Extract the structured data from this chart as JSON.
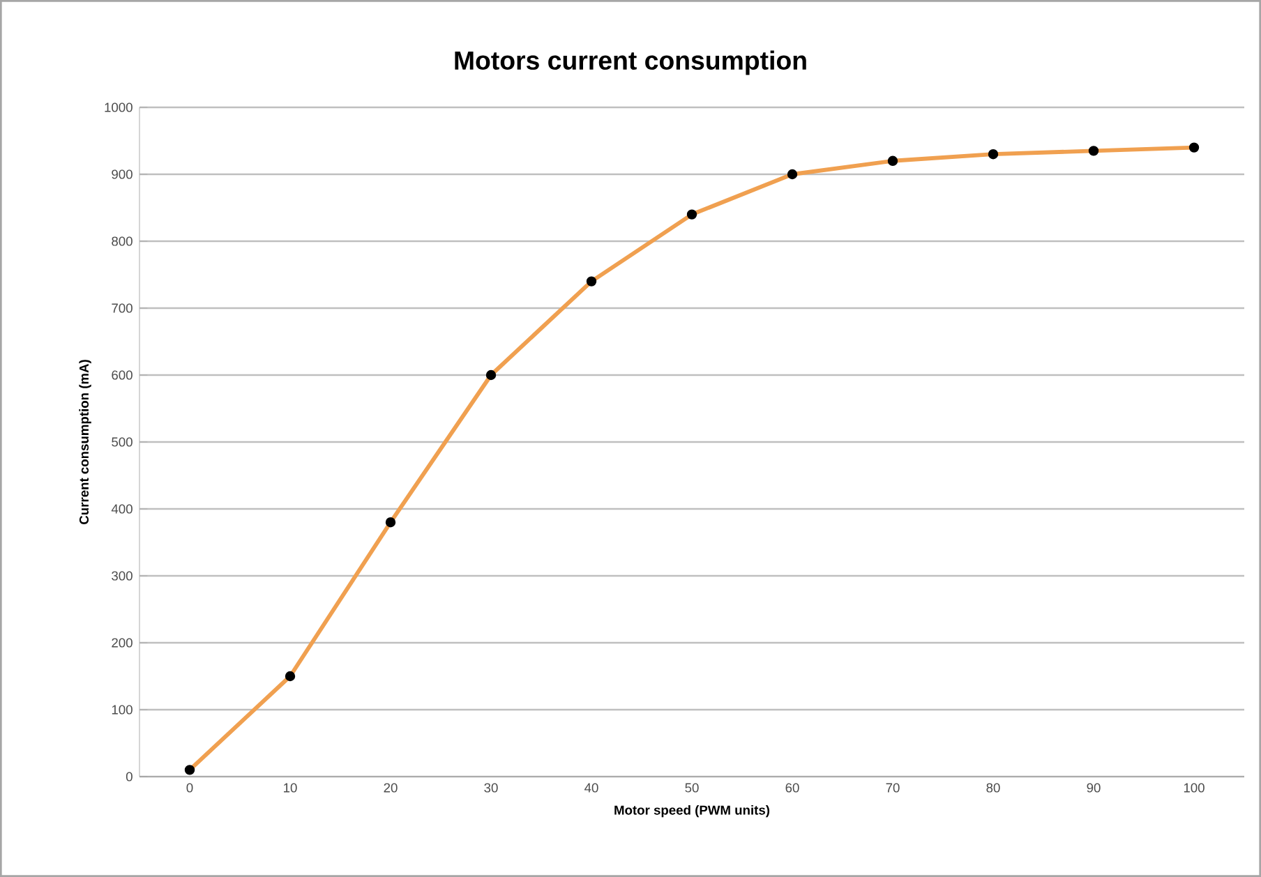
{
  "chart_data": {
    "type": "line",
    "title": "Motors current consumption",
    "xlabel": "Motor speed (PWM units)",
    "ylabel": "Current consumption (mA)",
    "categories": [
      "0",
      "10",
      "20",
      "30",
      "40",
      "50",
      "60",
      "70",
      "80",
      "90",
      "100"
    ],
    "series": [
      {
        "color": "#f0a050",
        "values": [
          10,
          150,
          380,
          600,
          740,
          840,
          900,
          920,
          930,
          935,
          940
        ]
      }
    ],
    "ylim": [
      0,
      1000
    ],
    "yticks": [
      0,
      100,
      200,
      300,
      400,
      500,
      600,
      700,
      800,
      900,
      1000
    ],
    "grid": "y",
    "marker": "circle",
    "line_style": "solid"
  }
}
